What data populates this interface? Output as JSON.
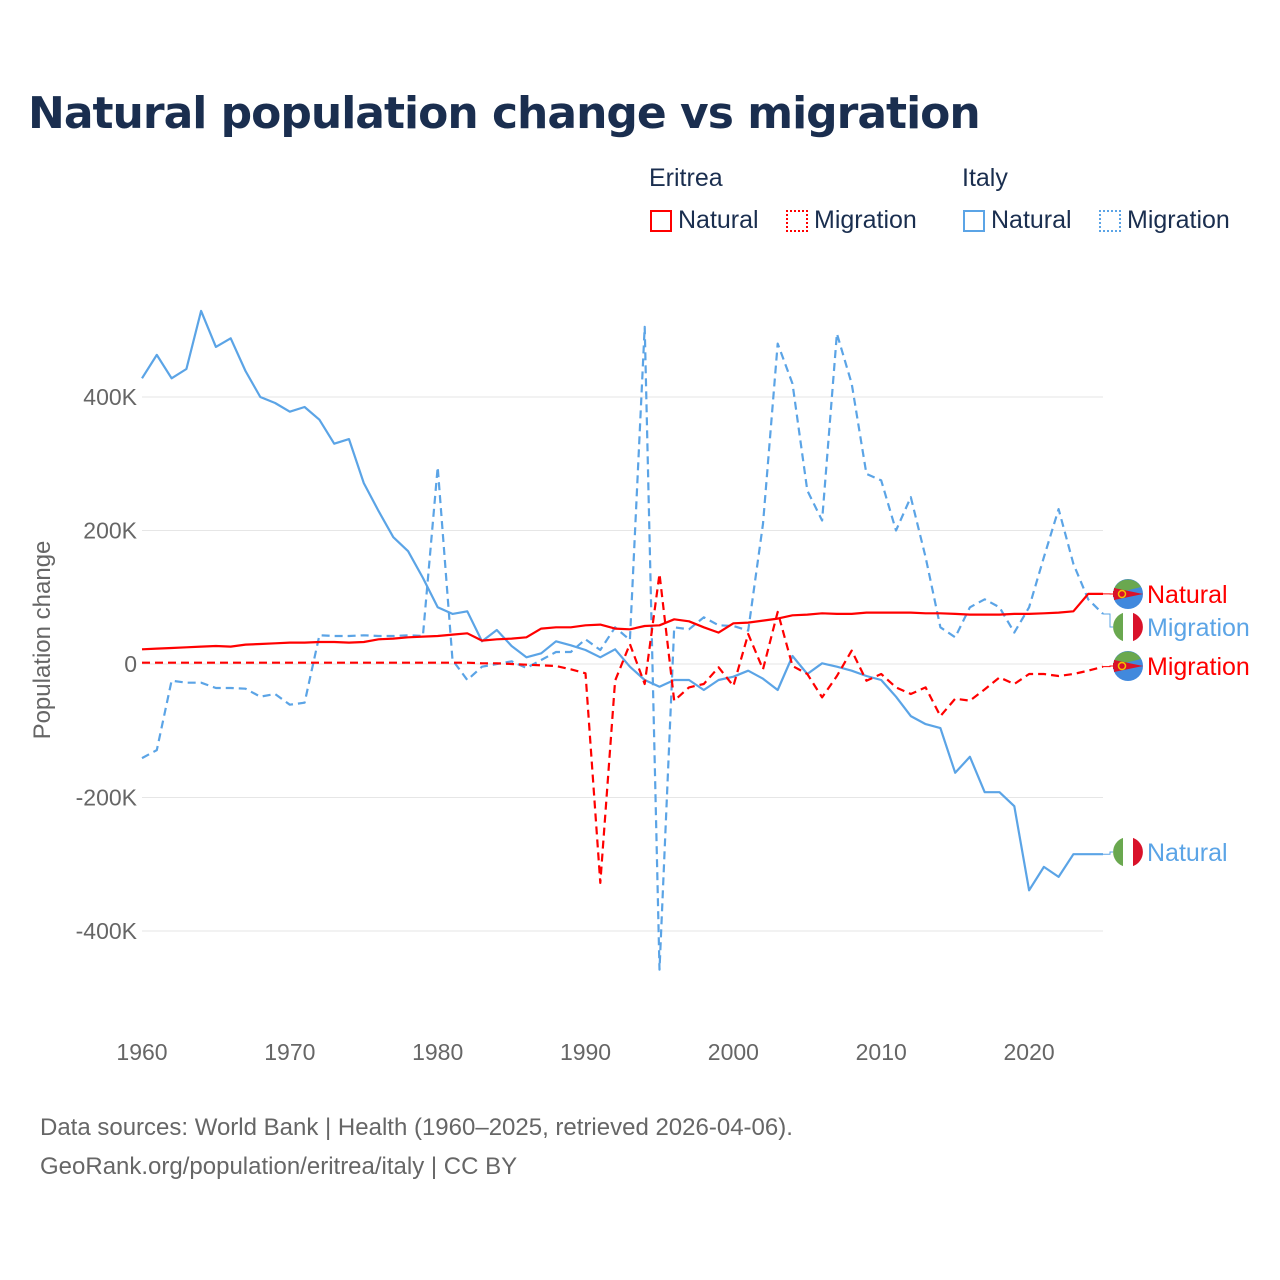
{
  "title": "Natural population change vs migration",
  "legend": {
    "groups": [
      {
        "name": "Eritrea",
        "items": [
          "Natural",
          "Migration"
        ],
        "color": "#ff0000"
      },
      {
        "name": "Italy",
        "items": [
          "Natural",
          "Migration"
        ],
        "color": "#5ba4e6"
      }
    ]
  },
  "footer": {
    "line1": "Data sources: World Bank | Health (1960–2025, retrieved 2026-04-06).",
    "line2": "GeoRank.org/population/eritrea/italy | CC BY"
  },
  "chart_data": {
    "type": "line",
    "title": "Natural population change vs migration",
    "xlabel": "",
    "ylabel": "Population change",
    "xlim": [
      1960,
      2025
    ],
    "ylim": [
      -460,
      530
    ],
    "x_ticks": [
      "1960",
      "1970",
      "1980",
      "1990",
      "2000",
      "2010",
      "2020"
    ],
    "y_ticks": [
      {
        "v": 400,
        "label": "400K"
      },
      {
        "v": 200,
        "label": "200K"
      },
      {
        "v": 0,
        "label": "0"
      },
      {
        "v": -200,
        "label": "-200K"
      },
      {
        "v": -400,
        "label": "-400K"
      }
    ],
    "units": "thousands",
    "x_start": 1960,
    "series": [
      {
        "name": "Italy Natural",
        "country": "Italy",
        "kind": "Natural",
        "color": "#5ba4e6",
        "dashed": false,
        "end_label": "Natural",
        "values": [
          428,
          463,
          428,
          442,
          529,
          475,
          488,
          439,
          400,
          391,
          378,
          385,
          366,
          330,
          337,
          271,
          229,
          190,
          169,
          129,
          85,
          75,
          79,
          34,
          51,
          27,
          10,
          16,
          34,
          28,
          21,
          10,
          22,
          -4,
          -24,
          -34,
          -24,
          -24,
          -39,
          -24,
          -19,
          -10,
          -22,
          -39,
          12,
          -15,
          1,
          -4,
          -10,
          -18,
          -24,
          -49,
          -78,
          -90,
          -96,
          -163,
          -139,
          -192,
          -192,
          -213,
          -339,
          -304,
          -319,
          -285,
          -285,
          -285
        ]
      },
      {
        "name": "Italy Migration",
        "country": "Italy",
        "kind": "Migration",
        "color": "#5ba4e6",
        "dashed": true,
        "end_label": "Migration",
        "values": [
          -141,
          -129,
          -25,
          -28,
          -28,
          -36,
          -36,
          -37,
          -49,
          -45,
          -61,
          -58,
          43,
          42,
          42,
          43,
          42,
          42,
          43,
          42,
          295,
          6,
          -24,
          -4,
          0,
          4,
          -6,
          6,
          18,
          18,
          37,
          21,
          55,
          36,
          505,
          -458,
          55,
          52,
          70,
          58,
          57,
          50,
          210,
          480,
          420,
          260,
          215,
          495,
          420,
          285,
          275,
          200,
          250,
          160,
          55,
          40,
          85,
          97,
          85,
          47,
          85,
          160,
          232,
          150,
          97,
          75
        ]
      },
      {
        "name": "Eritrea Natural",
        "country": "Eritrea",
        "kind": "Natural",
        "color": "#ff0000",
        "dashed": false,
        "end_label": "Natural",
        "values": [
          22,
          23,
          24,
          25,
          26,
          27,
          26,
          29,
          30,
          31,
          32,
          32,
          33,
          33,
          32,
          33,
          37,
          38,
          40,
          41,
          42,
          44,
          46,
          35,
          37,
          38,
          40,
          53,
          55,
          55,
          58,
          59,
          53,
          52,
          57,
          58,
          67,
          64,
          55,
          47,
          61,
          62,
          65,
          68,
          73,
          74,
          76,
          75,
          75,
          77,
          77,
          77,
          77,
          76,
          76,
          75,
          74,
          74,
          74,
          75,
          75,
          76,
          77,
          79,
          105,
          105
        ]
      },
      {
        "name": "Eritrea Migration",
        "country": "Eritrea",
        "kind": "Migration",
        "color": "#ff0000",
        "dashed": true,
        "end_label": "Migration",
        "values": [
          2,
          2,
          2,
          2,
          2,
          2,
          2,
          2,
          2,
          2,
          2,
          2,
          2,
          2,
          2,
          2,
          2,
          2,
          2,
          2,
          2,
          2,
          2,
          1,
          1,
          0,
          -1,
          -2,
          -3,
          -8,
          -14,
          -328,
          -25,
          30,
          -30,
          135,
          -55,
          -35,
          -30,
          -5,
          -33,
          45,
          -8,
          78,
          -3,
          -15,
          -50,
          -18,
          20,
          -25,
          -15,
          -35,
          -45,
          -35,
          -78,
          -52,
          -55,
          -38,
          -20,
          -30,
          -15,
          -15,
          -18,
          -15,
          -10,
          -4
        ]
      }
    ]
  }
}
